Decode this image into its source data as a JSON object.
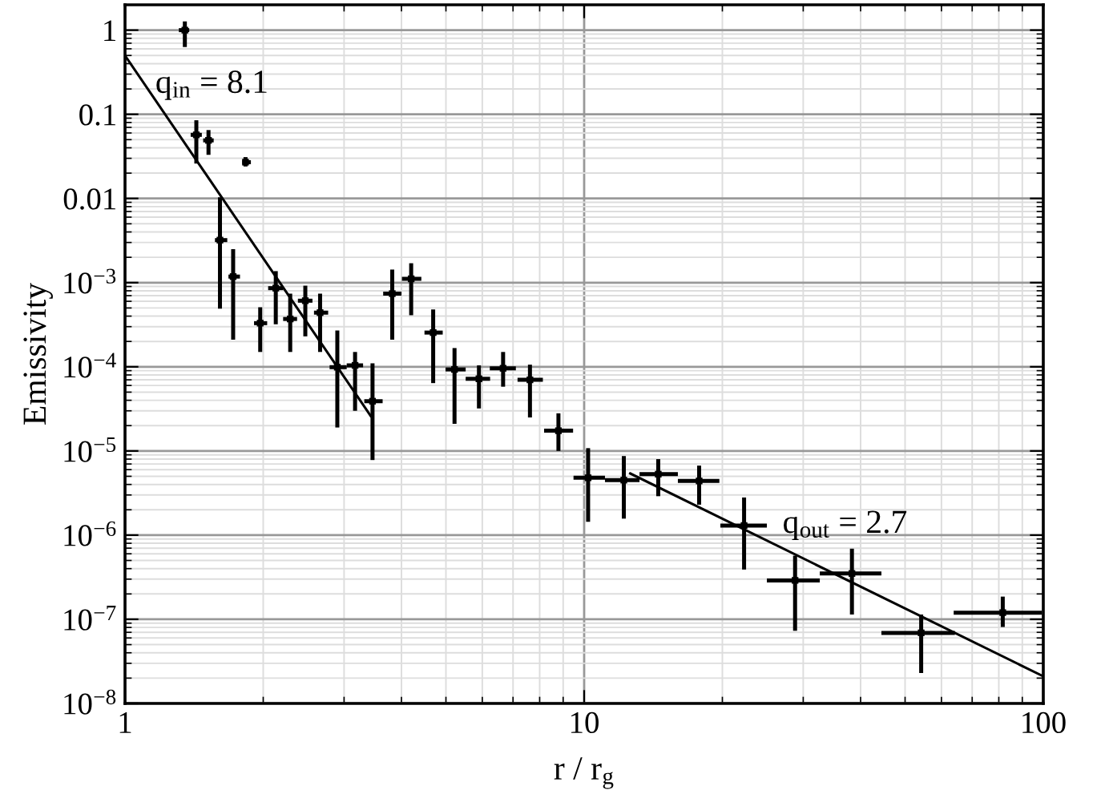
{
  "chart_data": {
    "type": "scatter",
    "xlabel": "r / r$_{g}$",
    "ylabel": "Emissivity",
    "log": "xy",
    "grid": true,
    "xlim": [
      1,
      100
    ],
    "xticks": [
      1,
      10,
      100
    ],
    "ylim": [
      1e-08,
      2
    ],
    "yticks": [
      1,
      0.1,
      0.01,
      {
        "value": 0.001,
        "label": "10$^{−3}$"
      },
      {
        "value": 0.0001,
        "label": "10$^{−4}$"
      },
      {
        "value": 1e-05,
        "label": "10$^{−5}$"
      },
      {
        "value": 1e-06,
        "label": "10$^{−6}$"
      },
      {
        "value": 1e-07,
        "label": "10$^{−7}$"
      },
      {
        "value": 1e-08,
        "label": "10$^{−8}$"
      }
    ],
    "series": [
      {
        "color": "#000000",
        "marker": "square",
        "x": [
          1.35,
          1.43,
          1.52,
          1.83,
          1.61,
          1.72,
          1.97,
          2.13,
          2.29,
          2.47,
          2.66,
          2.9,
          3.17,
          3.46,
          3.82,
          4.2,
          4.69,
          5.22,
          5.9,
          6.66,
          7.62,
          8.79,
          10.2,
          12.2,
          14.5,
          17.8,
          22.3,
          28.8,
          38.3,
          54.2,
          81.6
        ],
        "values": [
          1.0,
          0.057,
          0.049,
          0.027,
          0.0032,
          0.00118,
          0.00033,
          0.00086,
          0.00037,
          0.00061,
          0.00044,
          9.9e-05,
          0.000104,
          3.9e-05,
          0.00074,
          0.00111,
          0.000255,
          9.3e-05,
          7.2e-05,
          9.6e-05,
          7e-05,
          1.74e-05,
          4.8e-06,
          4.5e-06,
          5.3e-06,
          4.4e-06,
          1.3e-06,
          2.9e-07,
          3.5e-07,
          6.9e-08,
          1.2e-07
        ],
        "errors": [
          [
            0.63,
            1.27
          ],
          [
            0.026,
            0.085
          ],
          [
            0.033,
            0.065
          ],
          [
            0.024,
            0.031
          ],
          [
            0.00049,
            0.0103
          ],
          [
            0.00021,
            0.0025
          ],
          [
            0.00015,
            0.00051
          ],
          [
            0.00032,
            0.00137
          ],
          [
            0.00015,
            0.00074
          ],
          [
            0.00023,
            0.00092
          ],
          [
            0.00015,
            0.00074
          ],
          [
            1.9e-05,
            0.00027
          ],
          [
            3e-05,
            0.00015
          ],
          [
            7.8e-06,
            0.00011
          ],
          [
            0.00021,
            0.00143
          ],
          [
            0.00041,
            0.0017
          ],
          [
            6.4e-05,
            0.00048
          ],
          [
            2.1e-05,
            0.000167
          ],
          [
            3.2e-05,
            0.000104
          ],
          [
            5.8e-05,
            0.00015
          ],
          [
            2.5e-05,
            0.000106
          ],
          [
            1e-05,
            2.8e-05
          ],
          [
            1.44e-06,
            1.08e-05
          ],
          [
            1.57e-06,
            8.7e-06
          ],
          [
            2.9e-06,
            8e-06
          ],
          [
            2.3e-06,
            6.7e-06
          ],
          [
            3.9e-07,
            2.8e-06
          ],
          [
            7.3e-08,
            5.7e-07
          ],
          [
            1.14e-07,
            6.9e-07
          ],
          [
            2.3e-08,
            1.14e-07
          ],
          [
            8.1e-08,
            1.86e-07
          ]
        ],
        "xerrors": [
          [
            1.31,
            1.38
          ],
          [
            1.39,
            1.47
          ],
          [
            1.48,
            1.56
          ],
          [
            1.8,
            1.88
          ],
          [
            1.57,
            1.67
          ],
          [
            1.68,
            1.78
          ],
          [
            1.91,
            2.04
          ],
          [
            2.05,
            2.21
          ],
          [
            2.21,
            2.37
          ],
          [
            2.38,
            2.56
          ],
          [
            2.58,
            2.77
          ],
          [
            2.79,
            3.04
          ],
          [
            3.04,
            3.3
          ],
          [
            3.32,
            3.64
          ],
          [
            3.65,
            4.0
          ],
          [
            4.01,
            4.42
          ],
          [
            4.49,
            4.92
          ],
          [
            4.99,
            5.52
          ],
          [
            5.52,
            6.24
          ],
          [
            6.23,
            7.1
          ],
          [
            7.16,
            8.13
          ],
          [
            8.18,
            9.46
          ],
          [
            9.48,
            11.1
          ],
          [
            11.1,
            13.2
          ],
          [
            13.2,
            16.0
          ],
          [
            16.0,
            19.7
          ],
          [
            19.8,
            25.0
          ],
          [
            25.0,
            32.6
          ],
          [
            32.6,
            44.4
          ],
          [
            44.4,
            64.2
          ],
          [
            63.8,
            99.3
          ]
        ]
      },
      {
        "type": "line",
        "color": "#000000",
        "x": [
          1,
          3.43
        ],
        "values": [
          0.5,
          2.6e-05
        ]
      },
      {
        "type": "line",
        "color": "#000000",
        "x": [
          12.6,
          100
        ],
        "values": [
          5.4e-06,
          2.1e-08
        ]
      }
    ],
    "annotations": [
      "q$_{in}$ = 8.1",
      "q$_{out}$ = 2.7"
    ]
  }
}
